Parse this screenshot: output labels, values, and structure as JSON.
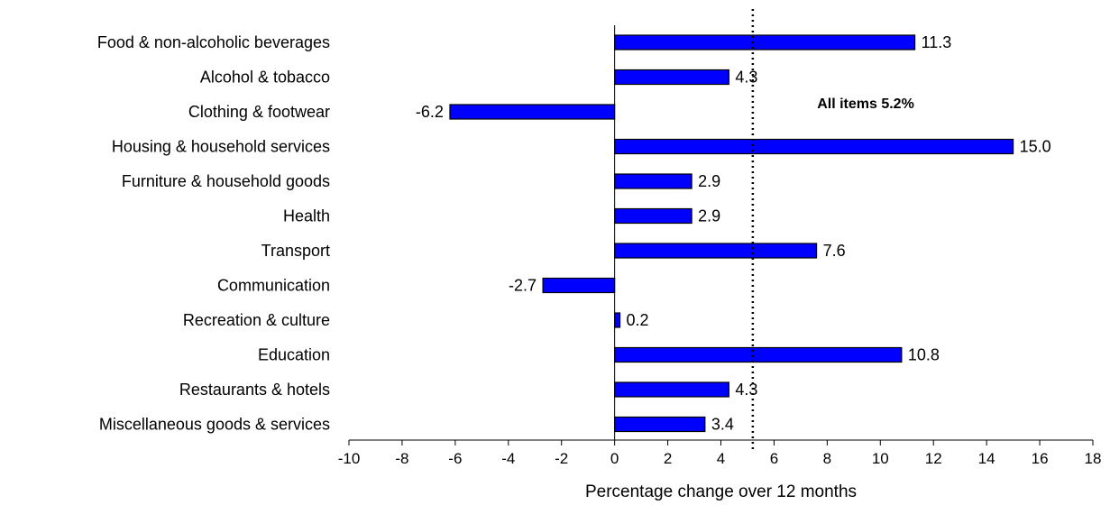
{
  "chart_data": {
    "type": "bar",
    "orientation": "horizontal",
    "categories": [
      "Food & non-alcoholic beverages",
      "Alcohol & tobacco",
      "Clothing & footwear",
      "Housing & household services",
      "Furniture & household goods",
      "Health",
      "Transport",
      "Communication",
      "Recreation & culture",
      "Education",
      "Restaurants & hotels",
      "Miscellaneous goods & services"
    ],
    "values": [
      11.3,
      4.3,
      -6.2,
      15.0,
      2.9,
      2.9,
      7.6,
      -2.7,
      0.2,
      10.8,
      4.3,
      3.4
    ],
    "value_labels": [
      "11.3",
      "4.3",
      "-6.2",
      "15.0",
      "2.9",
      "2.9",
      "7.6",
      "-2.7",
      "0.2",
      "10.8",
      "4.3",
      "3.4"
    ],
    "xlabel": "Percentage change over 12 months",
    "xlim": [
      -10,
      18
    ],
    "xticks": [
      -10,
      -8,
      -6,
      -4,
      -2,
      0,
      2,
      4,
      6,
      8,
      10,
      12,
      14,
      16,
      18
    ],
    "grid": false,
    "bar_color": "#0000ff",
    "bar_edge_color": "#000000",
    "reference_line": {
      "value": 5.2,
      "style": "dotted",
      "label": "All items 5.2%"
    }
  }
}
